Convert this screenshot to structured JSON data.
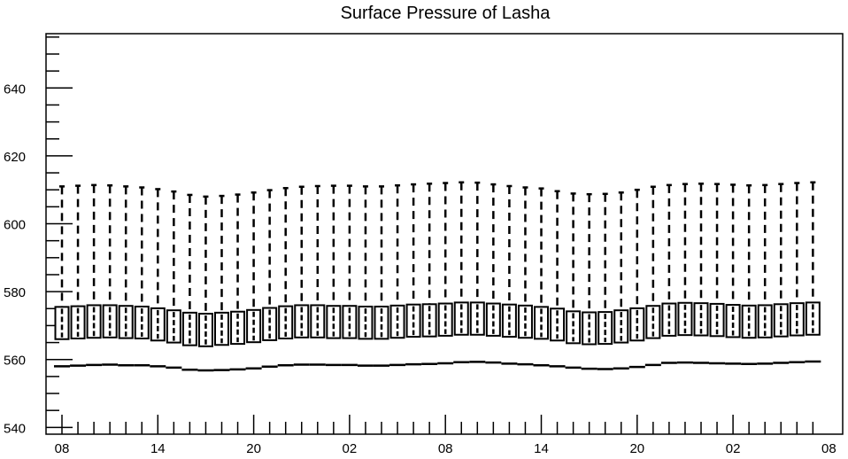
{
  "chart_data": {
    "type": "boxplot",
    "title": "Surface Pressure of Lasha",
    "xlabel": "",
    "ylabel": "",
    "ylim": [
      538,
      656
    ],
    "y_ticks": [
      540,
      560,
      580,
      600,
      620,
      640
    ],
    "x_tick_labels": [
      "08",
      "14",
      "20",
      "02",
      "08",
      "14",
      "20",
      "02",
      "08"
    ],
    "grid": false,
    "legend": "none",
    "colors": {
      "line": "#000000",
      "box_fill": "#ffffff"
    },
    "series": [
      {
        "low": [
          558.0,
          558.2,
          558.4,
          558.5,
          558.3,
          558.3,
          558.0,
          557.6,
          557.0,
          556.8,
          556.9,
          557.1,
          557.4,
          557.9,
          558.3,
          558.5,
          558.5,
          558.4,
          558.4,
          558.2,
          558.2,
          558.4,
          558.6,
          558.7,
          558.9,
          559.2,
          559.3,
          559.1,
          558.8,
          558.6,
          558.3,
          558.0,
          557.6,
          557.3,
          557.2,
          557.4,
          557.8,
          558.4,
          559.0,
          559.1,
          559.0,
          558.9,
          558.8,
          558.7,
          558.8,
          559.0,
          559.2,
          559.4
        ],
        "q1": [
          566.0,
          566.2,
          566.4,
          566.5,
          566.3,
          566.2,
          565.6,
          565.0,
          564.2,
          563.9,
          564.3,
          564.6,
          565.1,
          565.7,
          566.2,
          566.5,
          566.5,
          566.3,
          566.3,
          566.1,
          566.1,
          566.4,
          566.7,
          566.8,
          567.0,
          567.3,
          567.3,
          567.0,
          566.7,
          566.4,
          566.1,
          565.6,
          564.8,
          564.5,
          564.6,
          565.0,
          565.6,
          566.3,
          567.0,
          567.2,
          567.1,
          566.9,
          566.6,
          566.4,
          566.5,
          566.8,
          567.1,
          567.3
        ],
        "median": [
          570.8,
          571.0,
          571.2,
          571.3,
          571.1,
          571.0,
          570.5,
          570.0,
          569.3,
          569.0,
          569.3,
          569.6,
          570.1,
          570.6,
          571.0,
          571.3,
          571.3,
          571.1,
          571.1,
          570.9,
          570.9,
          571.2,
          571.5,
          571.6,
          571.8,
          572.1,
          572.1,
          571.8,
          571.5,
          571.2,
          570.9,
          570.4,
          569.7,
          569.4,
          569.5,
          569.9,
          570.5,
          571.2,
          571.8,
          572.0,
          571.9,
          571.7,
          571.4,
          571.2,
          571.3,
          571.6,
          571.9,
          572.1
        ],
        "q3": [
          575.5,
          575.7,
          576.0,
          576.0,
          575.8,
          575.6,
          575.1,
          574.5,
          573.8,
          573.5,
          573.8,
          574.1,
          574.6,
          575.2,
          575.7,
          576.0,
          576.0,
          575.8,
          575.8,
          575.6,
          575.6,
          575.9,
          576.2,
          576.3,
          576.5,
          576.8,
          576.8,
          576.5,
          576.2,
          575.9,
          575.5,
          575.0,
          574.2,
          573.9,
          574.0,
          574.5,
          575.1,
          575.8,
          576.5,
          576.7,
          576.6,
          576.4,
          576.1,
          575.9,
          576.0,
          576.3,
          576.6,
          576.8
        ],
        "high": [
          611.0,
          611.2,
          611.4,
          611.3,
          611.0,
          610.7,
          610.2,
          609.5,
          608.5,
          608.0,
          608.2,
          608.6,
          609.2,
          609.9,
          610.5,
          610.9,
          611.1,
          611.2,
          611.2,
          611.0,
          611.0,
          611.3,
          611.6,
          611.8,
          612.0,
          612.2,
          612.1,
          611.6,
          611.1,
          610.7,
          610.4,
          609.6,
          608.9,
          608.7,
          608.8,
          609.2,
          610.0,
          610.9,
          611.4,
          611.7,
          611.8,
          611.7,
          611.5,
          611.3,
          611.4,
          611.7,
          612.0,
          612.2
        ]
      }
    ]
  }
}
